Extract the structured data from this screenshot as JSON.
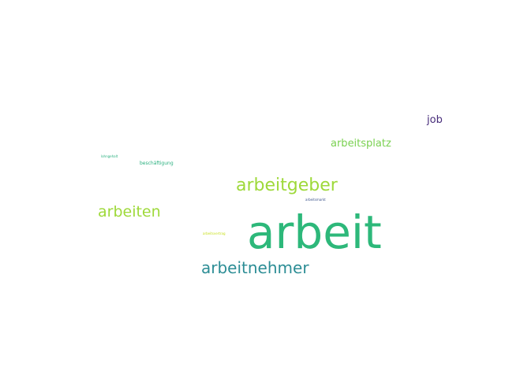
{
  "word_cloud": {
    "words": [
      {
        "key": "arbeit",
        "text": "arbeit",
        "color": "#2db87a"
      },
      {
        "key": "arbeitnehmer",
        "text": "arbeitnehmer",
        "color": "#2c8d95"
      },
      {
        "key": "arbeitgeber",
        "text": "arbeitgeber",
        "color": "#9ed93a"
      },
      {
        "key": "arbeiten",
        "text": "arbeiten",
        "color": "#9ed93a"
      },
      {
        "key": "arbeitsplatz",
        "text": "arbeitsplatz",
        "color": "#7ad151"
      },
      {
        "key": "job",
        "text": "job",
        "color": "#472c7a"
      },
      {
        "key": "beschaeftigung",
        "text": "beschäftigung",
        "color": "#2ab07f"
      },
      {
        "key": "gehalt",
        "text": "lohngehalt",
        "color": "#2ab07f"
      },
      {
        "key": "arbeitsmarkt",
        "text": "arbeitsmarkt",
        "color": "#3b528b"
      },
      {
        "key": "arbeitsvertrag",
        "text": "arbeitsvertrag",
        "color": "#c8e020"
      }
    ]
  }
}
